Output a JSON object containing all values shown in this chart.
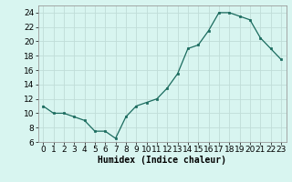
{
  "x": [
    0,
    1,
    2,
    3,
    4,
    5,
    6,
    7,
    8,
    9,
    10,
    11,
    12,
    13,
    14,
    15,
    16,
    17,
    18,
    19,
    20,
    21,
    22,
    23
  ],
  "y": [
    11,
    10,
    10,
    9.5,
    9,
    7.5,
    7.5,
    6.5,
    9.5,
    11,
    11.5,
    12,
    13.5,
    15.5,
    19,
    19.5,
    21.5,
    24,
    24,
    23.5,
    23,
    20.5,
    19,
    17.5
  ],
  "line_color": "#1a6b5e",
  "marker": "s",
  "marker_size": 2,
  "bg_color": "#d8f5f0",
  "grid_color": "#c0ddd8",
  "xlabel": "Humidex (Indice chaleur)",
  "ylim": [
    6,
    25
  ],
  "xlim": [
    -0.5,
    23.5
  ],
  "yticks": [
    6,
    8,
    10,
    12,
    14,
    16,
    18,
    20,
    22,
    24
  ],
  "xticks": [
    0,
    1,
    2,
    3,
    4,
    5,
    6,
    7,
    8,
    9,
    10,
    11,
    12,
    13,
    14,
    15,
    16,
    17,
    18,
    19,
    20,
    21,
    22,
    23
  ],
  "xlabel_fontsize": 7,
  "tick_fontsize": 6.5
}
